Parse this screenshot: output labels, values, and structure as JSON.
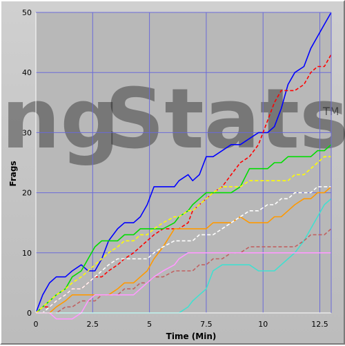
{
  "chart_data": {
    "type": "line",
    "title": "",
    "xlabel": "Time (Min)",
    "ylabel": "Frags",
    "xlim": [
      0,
      13
    ],
    "ylim": [
      0,
      50
    ],
    "xticks": [
      0,
      2.5,
      5,
      7.5,
      10,
      12.5
    ],
    "xtick_labels": [
      "0",
      "2.5",
      "5",
      "7.5",
      "10",
      "12.5"
    ],
    "yticks": [
      0,
      10,
      20,
      30,
      40,
      50
    ],
    "ytick_labels": [
      "0",
      "10",
      "20",
      "30",
      "40",
      "50"
    ],
    "grid": true,
    "watermark": {
      "part1": "ng",
      "part2": "Stats",
      "tm": "TM"
    },
    "series": [
      {
        "color": "#0000ff",
        "style": "solid",
        "x": [
          0,
          0.3,
          0.6,
          0.9,
          1.3,
          1.6,
          2.0,
          2.3,
          2.6,
          2.9,
          3.2,
          3.6,
          3.9,
          4.3,
          4.6,
          4.9,
          5.2,
          5.6,
          6.1,
          6.3,
          6.7,
          6.9,
          7.2,
          7.5,
          7.8,
          8.2,
          8.6,
          9.0,
          9.4,
          9.8,
          10.2,
          10.5,
          10.8,
          11.1,
          11.4,
          11.8,
          12.1,
          12.4,
          12.7,
          13.0
        ],
        "y": [
          0,
          3,
          5,
          6,
          6,
          7,
          8,
          7,
          7,
          9,
          12,
          14,
          15,
          15,
          16,
          18,
          21,
          21,
          21,
          22,
          23,
          22,
          23,
          26,
          26,
          27,
          28,
          28,
          29,
          30,
          30,
          31,
          34,
          38,
          40,
          41,
          44,
          46,
          48,
          50
        ]
      },
      {
        "color": "#ff0000",
        "style": "dashed",
        "x": [
          0,
          0.3,
          0.6,
          0.9,
          1.3,
          1.6,
          2.0,
          2.3,
          2.6,
          2.9,
          3.2,
          3.6,
          3.9,
          4.3,
          4.6,
          4.9,
          5.2,
          5.6,
          6.1,
          6.3,
          6.7,
          6.9,
          7.2,
          7.5,
          7.8,
          8.2,
          8.6,
          9.0,
          9.4,
          9.8,
          10.2,
          10.5,
          10.8,
          11.1,
          11.4,
          11.8,
          12.1,
          12.4,
          12.7,
          13.0
        ],
        "y": [
          0,
          1,
          1,
          2,
          3,
          4,
          4,
          5,
          6,
          6,
          7,
          8,
          9,
          10,
          11,
          12,
          13,
          14,
          14,
          14,
          15,
          17,
          18,
          19,
          20,
          21,
          23,
          25,
          26,
          28,
          32,
          35,
          37,
          37,
          37,
          38,
          40,
          41,
          41,
          43
        ]
      },
      {
        "color": "#00dd00",
        "style": "solid",
        "x": [
          0,
          0.3,
          0.6,
          0.9,
          1.3,
          1.6,
          2.0,
          2.3,
          2.6,
          2.9,
          3.2,
          3.6,
          3.9,
          4.3,
          4.6,
          4.9,
          5.2,
          5.6,
          6.1,
          6.3,
          6.7,
          6.9,
          7.2,
          7.5,
          7.8,
          8.2,
          8.6,
          9.0,
          9.4,
          9.8,
          10.2,
          10.5,
          10.8,
          11.1,
          11.4,
          11.8,
          12.1,
          12.4,
          12.7,
          13.0
        ],
        "y": [
          0,
          1,
          2,
          3,
          4,
          6,
          7,
          9,
          11,
          12,
          12,
          12,
          13,
          13,
          14,
          14,
          14,
          14,
          15,
          16,
          17,
          18,
          19,
          20,
          20,
          20,
          20,
          21,
          24,
          24,
          24,
          25,
          25,
          26,
          26,
          26,
          26,
          27,
          27,
          28
        ]
      },
      {
        "color": "#ffff00",
        "style": "dashed",
        "x": [
          0,
          0.3,
          0.6,
          0.9,
          1.3,
          1.6,
          2.0,
          2.3,
          2.6,
          2.9,
          3.2,
          3.6,
          3.9,
          4.3,
          4.6,
          4.9,
          5.2,
          5.6,
          6.1,
          6.3,
          6.7,
          6.9,
          7.2,
          7.5,
          7.8,
          8.2,
          8.6,
          9.0,
          9.4,
          9.8,
          10.2,
          10.5,
          10.8,
          11.1,
          11.4,
          11.8,
          12.1,
          12.4,
          12.7,
          13.0
        ],
        "y": [
          0,
          1,
          2,
          3,
          4,
          5,
          6,
          7,
          8,
          9,
          10,
          11,
          12,
          12,
          13,
          13,
          14,
          15,
          16,
          16,
          17,
          17,
          18,
          19,
          20,
          21,
          21,
          21,
          22,
          22,
          22,
          22,
          22,
          22,
          23,
          23,
          24,
          25,
          26,
          26
        ]
      },
      {
        "color": "#ff9900",
        "style": "solid",
        "x": [
          0,
          0.3,
          0.6,
          0.9,
          1.3,
          1.6,
          2.0,
          2.3,
          2.6,
          2.9,
          3.2,
          3.6,
          3.9,
          4.3,
          4.6,
          4.9,
          5.2,
          5.6,
          6.1,
          6.3,
          6.7,
          6.9,
          7.2,
          7.5,
          7.8,
          8.2,
          8.6,
          9.0,
          9.4,
          9.8,
          10.2,
          10.5,
          10.8,
          11.1,
          11.4,
          11.8,
          12.1,
          12.4,
          12.7,
          13.0
        ],
        "y": [
          0,
          0,
          0,
          1,
          2,
          3,
          3,
          3,
          3,
          3,
          3,
          4,
          5,
          5,
          6,
          7,
          9,
          11,
          14,
          14,
          14,
          14,
          14,
          14,
          15,
          15,
          15,
          16,
          15,
          15,
          15,
          16,
          16,
          17,
          18,
          19,
          19,
          20,
          20,
          21
        ]
      },
      {
        "color": "#ffffff",
        "style": "dashed",
        "x": [
          0,
          0.3,
          0.6,
          0.9,
          1.3,
          1.6,
          2.0,
          2.3,
          2.6,
          2.9,
          3.2,
          3.6,
          3.9,
          4.3,
          4.6,
          4.9,
          5.2,
          5.6,
          6.1,
          6.3,
          6.7,
          6.9,
          7.2,
          7.5,
          7.8,
          8.2,
          8.6,
          9.0,
          9.4,
          9.8,
          10.2,
          10.5,
          10.8,
          11.1,
          11.4,
          11.8,
          12.1,
          12.4,
          12.7,
          13.0
        ],
        "y": [
          0,
          0,
          1,
          2,
          3,
          4,
          4,
          5,
          6,
          7,
          8,
          9,
          9,
          9,
          9,
          9,
          10,
          11,
          12,
          12,
          12,
          12,
          13,
          13,
          13,
          14,
          15,
          16,
          17,
          17,
          18,
          18,
          19,
          19,
          20,
          20,
          20,
          21,
          21,
          21
        ]
      },
      {
        "color": "#40e0d0",
        "style": "solid",
        "x": [
          0,
          0.3,
          0.6,
          0.9,
          1.3,
          1.6,
          2.0,
          2.3,
          2.6,
          2.9,
          3.2,
          3.6,
          3.9,
          4.3,
          4.6,
          4.9,
          5.2,
          5.6,
          6.1,
          6.3,
          6.7,
          6.9,
          7.2,
          7.5,
          7.8,
          8.2,
          8.6,
          9.0,
          9.4,
          9.8,
          10.2,
          10.5,
          10.8,
          11.1,
          11.4,
          11.8,
          12.1,
          12.4,
          12.7,
          13.0
        ],
        "y": [
          0,
          0,
          0,
          0,
          0,
          0,
          0,
          0,
          0,
          0,
          0,
          0,
          0,
          0,
          0,
          0,
          0,
          0,
          0,
          0,
          1,
          2,
          3,
          4,
          7,
          8,
          8,
          8,
          8,
          7,
          7,
          7,
          8,
          9,
          10,
          12,
          14,
          16,
          18,
          19
        ]
      },
      {
        "color": "#c06060",
        "style": "dashed",
        "x": [
          0,
          0.3,
          0.6,
          0.9,
          1.3,
          1.6,
          2.0,
          2.3,
          2.6,
          2.9,
          3.2,
          3.6,
          3.9,
          4.3,
          4.6,
          4.9,
          5.2,
          5.6,
          6.1,
          6.3,
          6.7,
          6.9,
          7.2,
          7.5,
          7.8,
          8.2,
          8.6,
          9.0,
          9.4,
          9.8,
          10.2,
          10.5,
          10.8,
          11.1,
          11.4,
          11.8,
          12.1,
          12.4,
          12.7,
          13.0
        ],
        "y": [
          0,
          0,
          0,
          0,
          1,
          1,
          2,
          2,
          2,
          3,
          3,
          3,
          4,
          4,
          5,
          5,
          6,
          6,
          7,
          7,
          7,
          7,
          8,
          8,
          9,
          9,
          10,
          10,
          11,
          11,
          11,
          11,
          11,
          11,
          11,
          12,
          13,
          13,
          13,
          14
        ]
      },
      {
        "color": "#ff99ff",
        "style": "solid",
        "x": [
          0,
          0.3,
          0.6,
          0.9,
          1.3,
          1.6,
          2.0,
          2.3,
          2.6,
          2.9,
          3.2,
          3.6,
          3.9,
          4.3,
          4.6,
          4.9,
          5.2,
          5.6,
          6.1,
          6.3,
          6.7,
          6.9,
          7.2,
          7.5,
          7.8,
          8.2,
          8.6,
          9.0,
          9.4,
          9.8,
          10.2,
          10.5,
          10.8,
          11.1,
          11.4,
          11.8,
          12.1,
          12.4,
          12.7,
          13.0
        ],
        "y": [
          0,
          0,
          0,
          -1,
          -1,
          -1,
          0,
          2,
          3,
          3,
          3,
          3,
          3,
          3,
          4,
          5,
          6,
          7,
          8,
          9,
          10,
          10,
          10,
          10,
          10,
          10,
          10,
          10,
          10,
          10,
          10,
          10,
          10,
          10,
          10,
          10,
          10,
          10,
          10,
          10
        ]
      }
    ]
  }
}
